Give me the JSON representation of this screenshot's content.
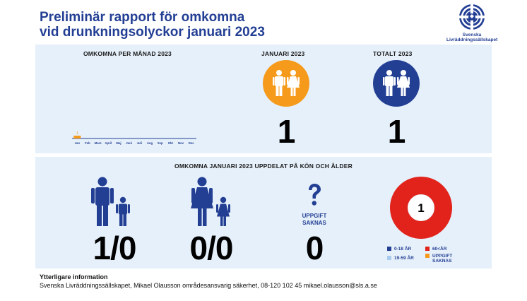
{
  "title_line1": "Preliminär rapport för omkomna",
  "title_line2": "vid drunkningsolyckor januari 2023",
  "logo": {
    "line1": "Svenska",
    "line2": "Livräddningssällskapet",
    "accent": "#233f94"
  },
  "top": {
    "month_header": "OMKOMNA PER MÅNAD 2023",
    "january_header": "JANUARI 2023",
    "total_header": "TOTALT 2023",
    "january_value": "1",
    "total_value": "1",
    "january_color": "#f59a1b",
    "total_color": "#233f94"
  },
  "bottom": {
    "header": "OMKOMNA JANUARI 2023 UPPDELAT PÅ KÖN OCH ÅLDER",
    "men_value": "1/0",
    "women_value": "0/0",
    "unknown_label_1": "UPPGIFT",
    "unknown_label_2": "SAKNAS",
    "unknown_value": "0",
    "donut_value": "1"
  },
  "legend": [
    {
      "label": "0-18 ÅR",
      "color": "#233f94"
    },
    {
      "label": "60<ÅR",
      "color": "#e1231b"
    },
    {
      "label": "19-59 ÅR",
      "color": "#a9ccee"
    },
    {
      "label": "UPPGIFT SAKNAS",
      "color": "#f59a1b"
    }
  ],
  "footer": {
    "heading": "Ytterligare information",
    "text": "Svenska Livräddningssällskapet, Mikael Olausson områdesansvarig säkerhet, 08-120 102 45 mikael.olausson@sls.a.se"
  },
  "chart_data": [
    {
      "type": "bar",
      "title": "OMKOMNA PER MÅNAD 2023",
      "categories": [
        "Jan",
        "Feb",
        "Mars",
        "April",
        "Maj",
        "Juni",
        "Juli",
        "Aug",
        "Sep",
        "Okt",
        "Nov",
        "Dec"
      ],
      "values": [
        1,
        0,
        0,
        0,
        0,
        0,
        0,
        0,
        0,
        0,
        0,
        0
      ],
      "data_labels": [
        "1",
        "",
        "",
        "",
        "",
        "",
        "",
        "",
        "",
        "",
        "",
        ""
      ],
      "color": "#f59a1b",
      "ylim": [
        0,
        40
      ],
      "grid": false
    },
    {
      "type": "pie",
      "title": "",
      "categories": [
        "0-18 ÅR",
        "19-59 ÅR",
        "60<ÅR",
        "UPPGIFT SAKNAS"
      ],
      "values": [
        0,
        0,
        1,
        0
      ],
      "colors": [
        "#233f94",
        "#a9ccee",
        "#e1231b",
        "#f59a1b"
      ],
      "center_label": "1",
      "donut": true
    }
  ]
}
